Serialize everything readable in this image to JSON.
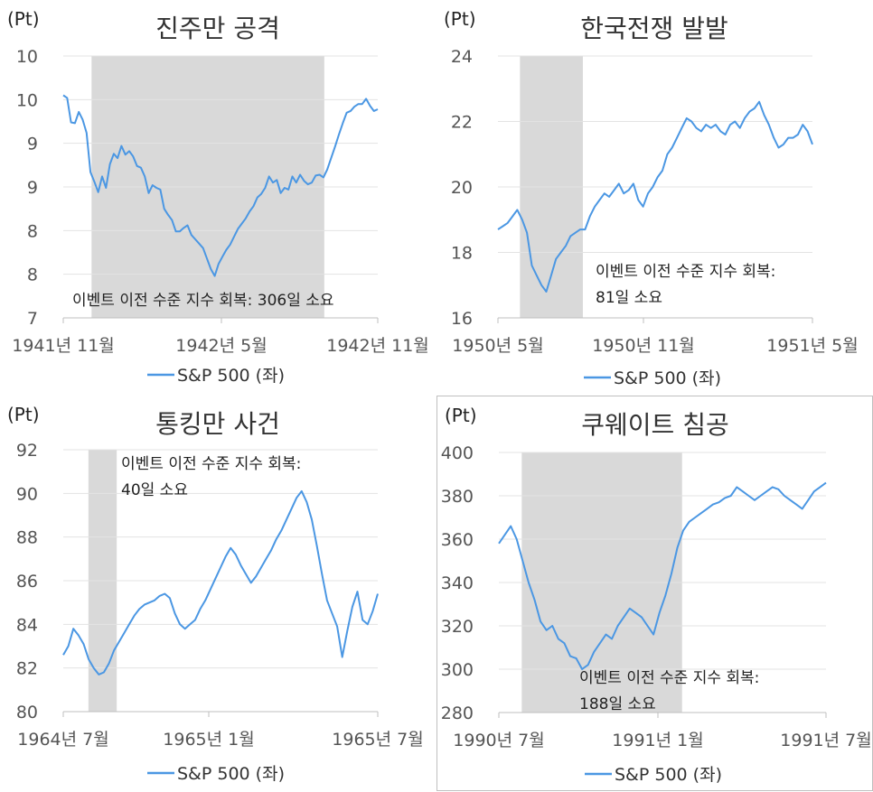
{
  "chart_data": [
    {
      "type": "line",
      "title": "진주만 공격",
      "unit": "(Pt)",
      "y_ticks": [
        "7",
        "8",
        "8",
        "9",
        "9",
        "10",
        "10"
      ],
      "ylim": [
        7,
        10
      ],
      "x_ticks": [
        "1941년 11월",
        "1942년 5월",
        "1942년 11월"
      ],
      "legend": "S&P 500 (좌)",
      "annotation": "이벤트 이전 수준 지수 회복: 306일 소요",
      "shaded_range": [
        0.09,
        0.83
      ],
      "series": [
        {
          "name": "S&P 500 (좌)",
          "color": "#4b97e3",
          "values": [
            9.55,
            9.52,
            9.24,
            9.23,
            9.36,
            9.27,
            9.12,
            8.67,
            8.56,
            8.44,
            8.62,
            8.49,
            8.76,
            8.88,
            8.83,
            8.97,
            8.87,
            8.91,
            8.85,
            8.74,
            8.72,
            8.62,
            8.43,
            8.52,
            8.49,
            8.47,
            8.25,
            8.18,
            8.12,
            7.99,
            7.99,
            8.03,
            8.06,
            7.95,
            7.9,
            7.85,
            7.8,
            7.68,
            7.56,
            7.48,
            7.62,
            7.7,
            7.78,
            7.84,
            7.93,
            8.02,
            8.08,
            8.14,
            8.22,
            8.28,
            8.38,
            8.42,
            8.49,
            8.62,
            8.55,
            8.58,
            8.43,
            8.49,
            8.47,
            8.62,
            8.55,
            8.64,
            8.57,
            8.53,
            8.55,
            8.63,
            8.64,
            8.61,
            8.7,
            8.83,
            8.96,
            9.1,
            9.23,
            9.35,
            9.37,
            9.42,
            9.45,
            9.45,
            9.51,
            9.43,
            9.37,
            9.39
          ]
        }
      ]
    },
    {
      "type": "line",
      "title": "한국전쟁 발발",
      "unit": "(Pt)",
      "y_ticks": [
        "16",
        "18",
        "20",
        "22",
        "24"
      ],
      "ylim": [
        16,
        24
      ],
      "x_ticks": [
        "1950년 5월",
        "1950년 11월",
        "1951년 5월"
      ],
      "legend": "S&P 500 (좌)",
      "annotation_lines": [
        "이벤트 이전 수준 지수 회복:",
        "81일 소요"
      ],
      "shaded_range": [
        0.07,
        0.27
      ],
      "series": [
        {
          "name": "S&P 500 (좌)",
          "color": "#4b97e3",
          "values": [
            18.7,
            18.8,
            18.9,
            19.1,
            19.3,
            19.0,
            18.6,
            17.6,
            17.3,
            17.0,
            16.8,
            17.3,
            17.8,
            18.0,
            18.2,
            18.5,
            18.6,
            18.7,
            18.7,
            19.1,
            19.4,
            19.6,
            19.8,
            19.7,
            19.9,
            20.1,
            19.8,
            19.9,
            20.1,
            19.6,
            19.4,
            19.8,
            20.0,
            20.3,
            20.5,
            21.0,
            21.2,
            21.5,
            21.8,
            22.1,
            22.0,
            21.8,
            21.7,
            21.9,
            21.8,
            21.9,
            21.7,
            21.6,
            21.9,
            22.0,
            21.8,
            22.1,
            22.3,
            22.4,
            22.6,
            22.2,
            21.9,
            21.5,
            21.2,
            21.3,
            21.5,
            21.5,
            21.6,
            21.9,
            21.7,
            21.3
          ]
        }
      ]
    },
    {
      "type": "line",
      "title": "통킹만 사건",
      "unit": "(Pt)",
      "y_ticks": [
        "80",
        "82",
        "84",
        "86",
        "88",
        "90",
        "92"
      ],
      "ylim": [
        80,
        92
      ],
      "x_ticks": [
        "1964년 7월",
        "1965년 1월",
        "1965년 7월"
      ],
      "legend": "S&P 500 (좌)",
      "annotation_lines": [
        "이벤트 이전 수준 지수 회복:",
        "40일 소요"
      ],
      "shaded_range": [
        0.08,
        0.17
      ],
      "series": [
        {
          "name": "S&P 500 (좌)",
          "color": "#4b97e3",
          "values": [
            82.6,
            83.0,
            83.8,
            83.5,
            83.1,
            82.4,
            82.0,
            81.7,
            81.8,
            82.2,
            82.8,
            83.2,
            83.6,
            84.0,
            84.4,
            84.7,
            84.9,
            85.0,
            85.1,
            85.3,
            85.4,
            85.2,
            84.5,
            84.0,
            83.8,
            84.0,
            84.2,
            84.7,
            85.1,
            85.6,
            86.1,
            86.6,
            87.1,
            87.5,
            87.2,
            86.7,
            86.3,
            85.9,
            86.2,
            86.6,
            87.0,
            87.4,
            87.9,
            88.3,
            88.8,
            89.3,
            89.8,
            90.1,
            89.6,
            88.8,
            87.6,
            86.3,
            85.1,
            84.5,
            83.9,
            82.5,
            83.7,
            84.8,
            85.5,
            84.2,
            84.0,
            84.6,
            85.4
          ]
        }
      ]
    },
    {
      "type": "line",
      "title": "쿠웨이트 침공",
      "unit": "(Pt)",
      "y_ticks": [
        "280",
        "300",
        "320",
        "340",
        "360",
        "380",
        "400"
      ],
      "ylim": [
        280,
        400
      ],
      "x_ticks": [
        "1990년 7월",
        "1991년 1월",
        "1991년 7월"
      ],
      "legend": "S&P 500 (좌)",
      "annotation_lines": [
        "이벤트 이전 수준 지수 회복:",
        "188일 소요"
      ],
      "shaded_range": [
        0.07,
        0.56
      ],
      "series": [
        {
          "name": "S&P 500 (좌)",
          "color": "#4b97e3",
          "values": [
            358,
            362,
            366,
            360,
            350,
            340,
            332,
            322,
            318,
            320,
            314,
            312,
            306,
            305,
            300,
            302,
            308,
            312,
            316,
            314,
            320,
            324,
            328,
            326,
            324,
            320,
            316,
            326,
            334,
            344,
            356,
            364,
            368,
            370,
            372,
            374,
            376,
            377,
            379,
            380,
            384,
            382,
            380,
            378,
            380,
            382,
            384,
            383,
            380,
            378,
            376,
            374,
            378,
            382,
            384,
            386
          ]
        }
      ]
    }
  ]
}
